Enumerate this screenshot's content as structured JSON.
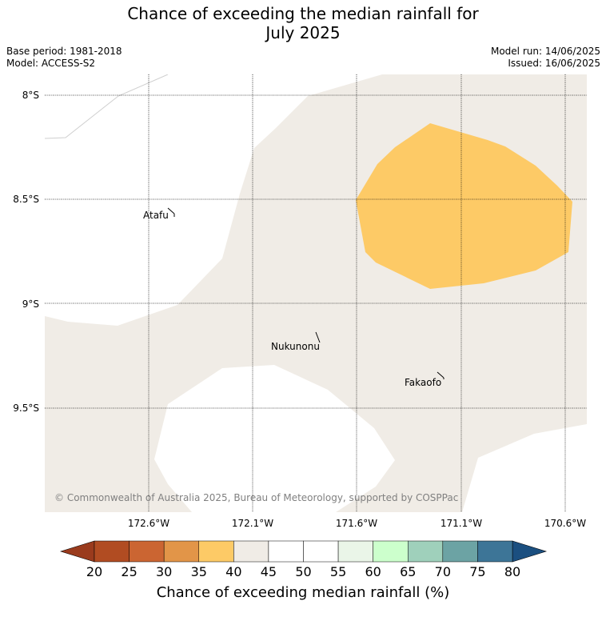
{
  "title_line1": "Chance of exceeding the median rainfall for",
  "title_line2": "July 2025",
  "meta": {
    "base_period": "Base period: 1981-2018",
    "model": "Model: ACCESS-S2",
    "model_run": "Model run: 14/06/2025",
    "issued": "Issued: 16/06/2025"
  },
  "map": {
    "lat_labels": [
      "8°S",
      "8.5°S",
      "9°S",
      "9.5°S"
    ],
    "lon_labels": [
      "172.6°W",
      "172.1°W",
      "171.6°W",
      "171.1°W",
      "170.6°W"
    ],
    "places": [
      "Atafu",
      "Nukunonu",
      "Fakaofo"
    ],
    "copyright": "© Commonwealth of Australia 2025, Bureau of Meteorology, supported by COSPPac",
    "colors": {
      "band_40_45": "#f0ece6",
      "band_35_40": "#fdca66",
      "coast": "#b9b9b9"
    }
  },
  "colorbar": {
    "ticks": [
      "20",
      "25",
      "30",
      "35",
      "40",
      "45",
      "50",
      "55",
      "60",
      "65",
      "70",
      "75",
      "80"
    ],
    "colors": [
      "#b14c22",
      "#cb6532",
      "#e29548",
      "#fdca66",
      "#f0ece6",
      "#ffffff",
      "#ffffff",
      "#eaf5e8",
      "#ccffcc",
      "#9fd0bb",
      "#6ca3a4",
      "#3d7597"
    ],
    "low_color": "#9a3b1d",
    "high_color": "#1b4f80",
    "label": "Chance of exceeding median rainfall (%)"
  }
}
